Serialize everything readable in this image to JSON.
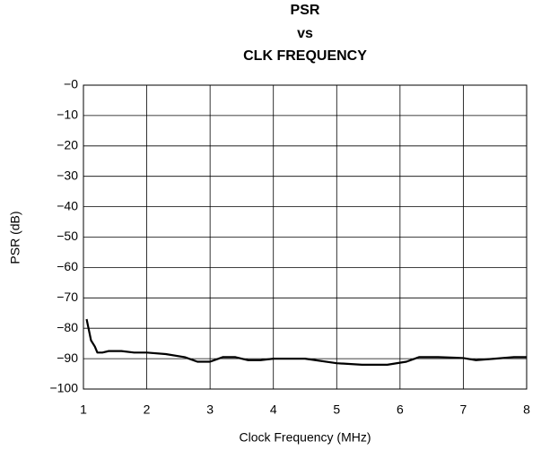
{
  "chart_data": {
    "type": "line",
    "title": [
      "PSR",
      "vs",
      "CLK FREQUENCY"
    ],
    "xlabel": "Clock Frequency (MHz)",
    "ylabel": "PSR (dB)",
    "x": [
      1.05,
      1.08,
      1.12,
      1.18,
      1.22,
      1.3,
      1.4,
      1.6,
      1.8,
      2.0,
      2.3,
      2.6,
      2.8,
      3.0,
      3.2,
      3.4,
      3.6,
      3.8,
      4.0,
      4.5,
      5.0,
      5.4,
      5.8,
      6.1,
      6.3,
      6.6,
      7.0,
      7.2,
      7.5,
      7.8,
      8.0
    ],
    "series": [
      {
        "color": "#000000",
        "values": [
          -77,
          -80,
          -84,
          -86,
          -88,
          -88,
          -87.5,
          -87.5,
          -88,
          -88,
          -88.5,
          -89.5,
          -91,
          -91,
          -89.5,
          -89.5,
          -90.5,
          -90.5,
          -90,
          -90,
          -91.5,
          -92,
          -92,
          -91,
          -89.5,
          -89.5,
          -89.8,
          -90.5,
          -90,
          -89.5,
          -89.5
        ]
      }
    ],
    "xlim": [
      1,
      8
    ],
    "xticks": [
      1,
      2,
      3,
      4,
      5,
      6,
      7,
      8
    ],
    "ylim": [
      -100,
      0
    ],
    "yticks": [
      {
        "value": 0,
        "label": "−0"
      },
      {
        "value": -10,
        "label": "−10"
      },
      {
        "value": -20,
        "label": "−20"
      },
      {
        "value": -30,
        "label": "−30"
      },
      {
        "value": -40,
        "label": "−40"
      },
      {
        "value": -50,
        "label": "−50"
      },
      {
        "value": -60,
        "label": "−60"
      },
      {
        "value": -70,
        "label": "−70"
      },
      {
        "value": -80,
        "label": "−80"
      },
      {
        "value": -90,
        "label": "−90"
      },
      {
        "value": -100,
        "label": "−100"
      }
    ],
    "grid": true
  }
}
